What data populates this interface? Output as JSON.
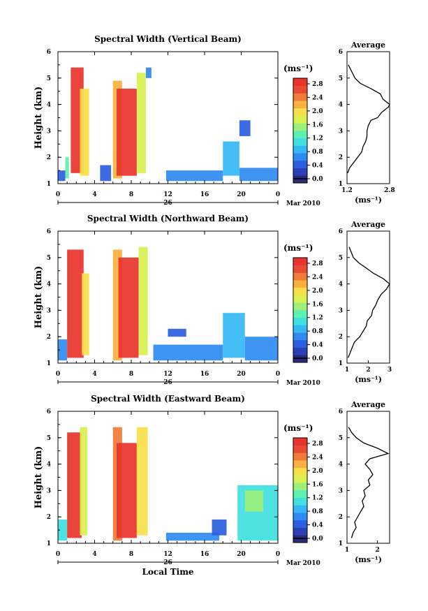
{
  "chart_data": [
    {
      "type": "heatmap",
      "title": "Spectral Width (Vertical Beam)",
      "ylabel": "Height (km)",
      "ylim": [
        1,
        6
      ],
      "yticks": [
        "1",
        "2",
        "3",
        "4",
        "5",
        "6"
      ],
      "xlim": [
        0,
        24
      ],
      "xticks": [
        "0",
        "4",
        "8",
        "12",
        "16",
        "20",
        "0"
      ],
      "day_label": "26",
      "date_label": "Mar 2010",
      "colorbar": {
        "unit": "(ms⁻¹)",
        "ticks": [
          "0.0",
          "0.4",
          "0.8",
          "1.2",
          "1.6",
          "2.0",
          "2.4",
          "2.8"
        ],
        "range": [
          0,
          3.0
        ]
      },
      "patches": [
        {
          "t0": 0.0,
          "t1": 0.8,
          "h0": 1.1,
          "h1": 1.5,
          "v": 0.6
        },
        {
          "t0": 0.8,
          "t1": 1.2,
          "h0": 1.2,
          "h1": 2.0,
          "v": 1.4
        },
        {
          "t0": 1.4,
          "t1": 2.8,
          "h0": 1.4,
          "h1": 5.4,
          "v": 2.9
        },
        {
          "t0": 2.4,
          "t1": 3.4,
          "h0": 1.3,
          "h1": 4.6,
          "v": 2.0
        },
        {
          "t0": 4.6,
          "t1": 5.8,
          "h0": 1.1,
          "h1": 1.7,
          "v": 0.5
        },
        {
          "t0": 6.0,
          "t1": 7.0,
          "h0": 1.2,
          "h1": 4.9,
          "v": 2.2
        },
        {
          "t0": 6.4,
          "t1": 8.6,
          "h0": 1.3,
          "h1": 4.6,
          "v": 2.9
        },
        {
          "t0": 8.6,
          "t1": 9.6,
          "h0": 1.4,
          "h1": 5.2,
          "v": 1.8
        },
        {
          "t0": 9.6,
          "t1": 10.2,
          "h0": 5.0,
          "h1": 5.4,
          "v": 0.8
        },
        {
          "t0": 11.8,
          "t1": 18.0,
          "h0": 1.1,
          "h1": 1.5,
          "v": 0.7
        },
        {
          "t0": 18.0,
          "t1": 19.8,
          "h0": 1.3,
          "h1": 2.6,
          "v": 0.9
        },
        {
          "t0": 19.8,
          "t1": 21.0,
          "h0": 2.8,
          "h1": 3.4,
          "v": 0.5
        },
        {
          "t0": 19.8,
          "t1": 24.0,
          "h0": 1.1,
          "h1": 1.6,
          "v": 0.7
        }
      ]
    },
    {
      "type": "heatmap",
      "title": "Spectral Width (Northward Beam)",
      "ylabel": "Height (km)",
      "ylim": [
        1,
        6
      ],
      "yticks": [
        "1",
        "2",
        "3",
        "4",
        "5",
        "6"
      ],
      "xlim": [
        0,
        24
      ],
      "xticks": [
        "0",
        "4",
        "8",
        "12",
        "16",
        "20",
        "0"
      ],
      "day_label": "26",
      "date_label": "Mar 2010",
      "colorbar": {
        "unit": "(ms⁻¹)",
        "ticks": [
          "0.0",
          "0.4",
          "0.8",
          "1.2",
          "1.6",
          "2.0",
          "2.4",
          "2.8"
        ],
        "range": [
          0,
          3.0
        ]
      },
      "patches": [
        {
          "t0": 0.0,
          "t1": 1.0,
          "h0": 1.1,
          "h1": 1.9,
          "v": 0.8
        },
        {
          "t0": 1.0,
          "t1": 2.8,
          "h0": 1.2,
          "h1": 5.3,
          "v": 2.9
        },
        {
          "t0": 2.6,
          "t1": 3.4,
          "h0": 1.3,
          "h1": 4.4,
          "v": 2.0
        },
        {
          "t0": 6.0,
          "t1": 7.0,
          "h0": 1.1,
          "h1": 5.3,
          "v": 2.3
        },
        {
          "t0": 6.6,
          "t1": 8.8,
          "h0": 1.2,
          "h1": 5.0,
          "v": 2.9
        },
        {
          "t0": 8.8,
          "t1": 9.8,
          "h0": 1.3,
          "h1": 5.4,
          "v": 1.9
        },
        {
          "t0": 10.4,
          "t1": 18.0,
          "h0": 1.1,
          "h1": 1.7,
          "v": 0.8
        },
        {
          "t0": 12.0,
          "t1": 14.0,
          "h0": 2.0,
          "h1": 2.3,
          "v": 0.5
        },
        {
          "t0": 18.0,
          "t1": 20.4,
          "h0": 1.2,
          "h1": 2.9,
          "v": 1.0
        },
        {
          "t0": 20.4,
          "t1": 24.0,
          "h0": 1.1,
          "h1": 2.0,
          "v": 0.8
        }
      ]
    },
    {
      "type": "heatmap",
      "title": "Spectral Width (Eastward Beam)",
      "ylabel": "Height (km)",
      "ylim": [
        1,
        6
      ],
      "yticks": [
        "1",
        "2",
        "3",
        "4",
        "5",
        "6"
      ],
      "xlim": [
        0,
        24
      ],
      "xticks": [
        "0",
        "4",
        "8",
        "12",
        "16",
        "20",
        "0"
      ],
      "day_label": "26",
      "date_label": "Mar 2010",
      "xlabel": "Local Time",
      "colorbar": {
        "unit": "(ms⁻¹)",
        "ticks": [
          "0.0",
          "0.4",
          "0.8",
          "1.2",
          "1.6",
          "2.0",
          "2.4",
          "2.8"
        ],
        "range": [
          0,
          3.0
        ]
      },
      "patches": [
        {
          "t0": 0.0,
          "t1": 1.0,
          "h0": 1.1,
          "h1": 1.9,
          "v": 1.2
        },
        {
          "t0": 1.0,
          "t1": 2.6,
          "h0": 1.2,
          "h1": 5.2,
          "v": 2.9
        },
        {
          "t0": 2.4,
          "t1": 3.2,
          "h0": 1.3,
          "h1": 5.4,
          "v": 1.8
        },
        {
          "t0": 6.0,
          "t1": 7.0,
          "h0": 1.1,
          "h1": 5.4,
          "v": 2.4
        },
        {
          "t0": 6.4,
          "t1": 8.6,
          "h0": 1.2,
          "h1": 4.8,
          "v": 2.9
        },
        {
          "t0": 8.6,
          "t1": 9.8,
          "h0": 1.3,
          "h1": 5.4,
          "v": 2.0
        },
        {
          "t0": 11.8,
          "t1": 17.6,
          "h0": 1.1,
          "h1": 1.4,
          "v": 0.7
        },
        {
          "t0": 16.8,
          "t1": 18.4,
          "h0": 1.3,
          "h1": 1.9,
          "v": 0.6
        },
        {
          "t0": 19.6,
          "t1": 24.0,
          "h0": 1.1,
          "h1": 3.2,
          "v": 1.1
        },
        {
          "t0": 20.4,
          "t1": 22.4,
          "h0": 2.2,
          "h1": 3.0,
          "v": 1.6
        }
      ]
    }
  ],
  "averages": [
    {
      "title": "Average",
      "unit": "(ms⁻¹)",
      "xticks": [
        "1.2",
        "2.8"
      ],
      "xlim": [
        1.2,
        2.8
      ],
      "ylim": [
        1,
        6
      ],
      "yticks": [
        "1",
        "2",
        "3",
        "4",
        "5",
        "6"
      ],
      "profile": [
        {
          "h": 1.4,
          "w": 1.22
        },
        {
          "h": 1.6,
          "w": 1.3
        },
        {
          "h": 1.8,
          "w": 1.45
        },
        {
          "h": 2.0,
          "w": 1.6
        },
        {
          "h": 2.2,
          "w": 1.75
        },
        {
          "h": 2.4,
          "w": 1.8
        },
        {
          "h": 2.6,
          "w": 1.9
        },
        {
          "h": 2.8,
          "w": 1.95
        },
        {
          "h": 3.0,
          "w": 1.95
        },
        {
          "h": 3.2,
          "w": 2.0
        },
        {
          "h": 3.4,
          "w": 2.1
        },
        {
          "h": 3.5,
          "w": 2.35
        },
        {
          "h": 3.7,
          "w": 2.5
        },
        {
          "h": 3.9,
          "w": 2.75
        },
        {
          "h": 4.0,
          "w": 2.8
        },
        {
          "h": 4.2,
          "w": 2.55
        },
        {
          "h": 4.4,
          "w": 2.45
        },
        {
          "h": 4.6,
          "w": 2.1
        },
        {
          "h": 4.8,
          "w": 1.7
        },
        {
          "h": 5.0,
          "w": 1.5
        },
        {
          "h": 5.2,
          "w": 1.4
        },
        {
          "h": 5.4,
          "w": 1.3
        },
        {
          "h": 5.5,
          "w": 1.25
        }
      ]
    },
    {
      "title": "Average",
      "unit": "(ms⁻¹)",
      "xticks": [
        "1",
        "2",
        "3"
      ],
      "xlim": [
        1,
        3
      ],
      "ylim": [
        1,
        6
      ],
      "yticks": [
        "1",
        "2",
        "3",
        "4",
        "5",
        "6"
      ],
      "profile": [
        {
          "h": 1.2,
          "w": 1.05
        },
        {
          "h": 1.4,
          "w": 1.15
        },
        {
          "h": 1.6,
          "w": 1.25
        },
        {
          "h": 1.8,
          "w": 1.35
        },
        {
          "h": 2.0,
          "w": 1.6
        },
        {
          "h": 2.2,
          "w": 1.75
        },
        {
          "h": 2.4,
          "w": 1.9
        },
        {
          "h": 2.6,
          "w": 1.95
        },
        {
          "h": 2.8,
          "w": 2.15
        },
        {
          "h": 3.0,
          "w": 2.2
        },
        {
          "h": 3.2,
          "w": 2.35
        },
        {
          "h": 3.4,
          "w": 2.45
        },
        {
          "h": 3.6,
          "w": 2.6
        },
        {
          "h": 3.8,
          "w": 2.85
        },
        {
          "h": 4.0,
          "w": 3.0
        },
        {
          "h": 4.2,
          "w": 2.7
        },
        {
          "h": 4.4,
          "w": 2.25
        },
        {
          "h": 4.6,
          "w": 1.9
        },
        {
          "h": 4.8,
          "w": 1.55
        },
        {
          "h": 5.0,
          "w": 1.3
        },
        {
          "h": 5.2,
          "w": 1.2
        },
        {
          "h": 5.4,
          "w": 1.1
        }
      ]
    },
    {
      "title": "Average",
      "unit": "(ms⁻¹)",
      "xticks": [
        "1",
        "2"
      ],
      "xlim": [
        1,
        2.4
      ],
      "ylim": [
        1,
        6
      ],
      "yticks": [
        "1",
        "2",
        "3",
        "4",
        "5",
        "6"
      ],
      "profile": [
        {
          "h": 1.2,
          "w": 1.15
        },
        {
          "h": 1.4,
          "w": 1.2
        },
        {
          "h": 1.6,
          "w": 1.3
        },
        {
          "h": 1.8,
          "w": 1.25
        },
        {
          "h": 2.0,
          "w": 1.35
        },
        {
          "h": 2.2,
          "w": 1.45
        },
        {
          "h": 2.4,
          "w": 1.55
        },
        {
          "h": 2.6,
          "w": 1.5
        },
        {
          "h": 2.8,
          "w": 1.6
        },
        {
          "h": 3.0,
          "w": 1.55
        },
        {
          "h": 3.2,
          "w": 1.75
        },
        {
          "h": 3.4,
          "w": 1.7
        },
        {
          "h": 3.6,
          "w": 1.85
        },
        {
          "h": 3.8,
          "w": 1.75
        },
        {
          "h": 4.0,
          "w": 1.6
        },
        {
          "h": 4.2,
          "w": 1.75
        },
        {
          "h": 4.4,
          "w": 2.35
        },
        {
          "h": 4.6,
          "w": 2.0
        },
        {
          "h": 4.8,
          "w": 1.55
        },
        {
          "h": 5.0,
          "w": 1.3
        },
        {
          "h": 5.2,
          "w": 1.15
        },
        {
          "h": 5.4,
          "w": 1.05
        }
      ]
    }
  ],
  "colormap": [
    "#2a2a7a",
    "#2b3fb8",
    "#2d5ee0",
    "#2f8bf0",
    "#35b8f4",
    "#40e0e0",
    "#5ef0b0",
    "#9cf07a",
    "#d8f050",
    "#f6e04a",
    "#f8b040",
    "#f07a38",
    "#e84a34",
    "#e8342c"
  ]
}
